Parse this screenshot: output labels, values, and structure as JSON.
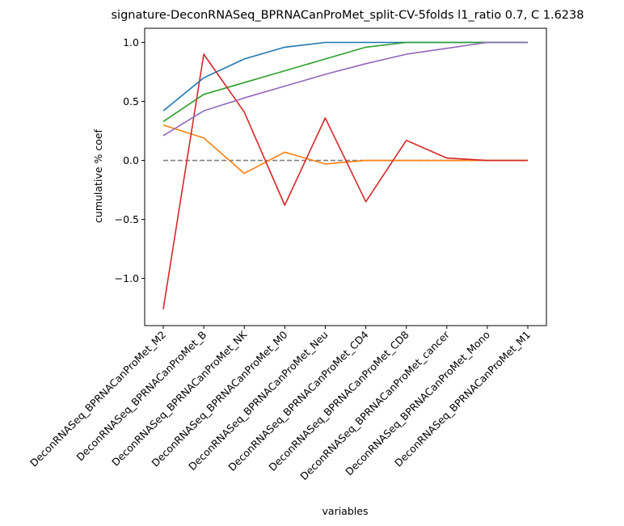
{
  "chart_data": {
    "type": "line",
    "title": "signature-DeconRNASeq_BPRNACanProMet_split-CV-5folds l1_ratio 0.7, C 1.6238",
    "xlabel": "variables",
    "ylabel": "cumulative % coef",
    "categories": [
      "DeconRNASeq_BPRNACanProMet_M2",
      "DeconRNASeq_BPRNACanProMet_B",
      "DeconRNASeq_BPRNACanProMet_NK",
      "DeconRNASeq_BPRNACanProMet_M0",
      "DeconRNASeq_BPRNACanProMet_Neu",
      "DeconRNASeq_BPRNACanProMet_CD4",
      "DeconRNASeq_BPRNACanProMet_CD8",
      "DeconRNASeq_BPRNACanProMet_cancer",
      "DeconRNASeq_BPRNACanProMet_Mono",
      "DeconRNASeq_BPRNACanProMet_M1"
    ],
    "ylim": [
      -1.4,
      1.12
    ],
    "yticks": [
      -1.0,
      -0.5,
      0.0,
      0.5,
      1.0
    ],
    "ytick_labels": [
      "−1.0",
      "−0.5",
      "0.0",
      "0.5",
      "1.0"
    ],
    "grid": false,
    "legend": "none",
    "series": [
      {
        "color": "#1f77b4",
        "values": [
          0.42,
          0.7,
          0.86,
          0.96,
          1.0,
          1.0,
          1.0,
          1.0,
          1.0,
          1.0
        ]
      },
      {
        "color": "#ff7f0e",
        "values": [
          0.3,
          0.19,
          -0.11,
          0.07,
          -0.03,
          0.0,
          0.0,
          0.0,
          0.0,
          0.0
        ]
      },
      {
        "color": "#2ca02c",
        "values": [
          0.33,
          0.56,
          0.66,
          0.76,
          0.86,
          0.96,
          1.0,
          1.0,
          1.0,
          1.0
        ]
      },
      {
        "color": "#d62728",
        "values": [
          -1.26,
          0.9,
          0.41,
          -0.38,
          0.36,
          -0.35,
          0.17,
          0.02,
          0.0,
          0.0
        ]
      },
      {
        "color": "#9467bd",
        "values": [
          0.21,
          0.42,
          0.53,
          0.63,
          0.73,
          0.82,
          0.9,
          0.95,
          1.0,
          1.0
        ]
      }
    ],
    "reference_line": {
      "y": 0.0,
      "color": "#808080",
      "style": "dashed"
    }
  }
}
